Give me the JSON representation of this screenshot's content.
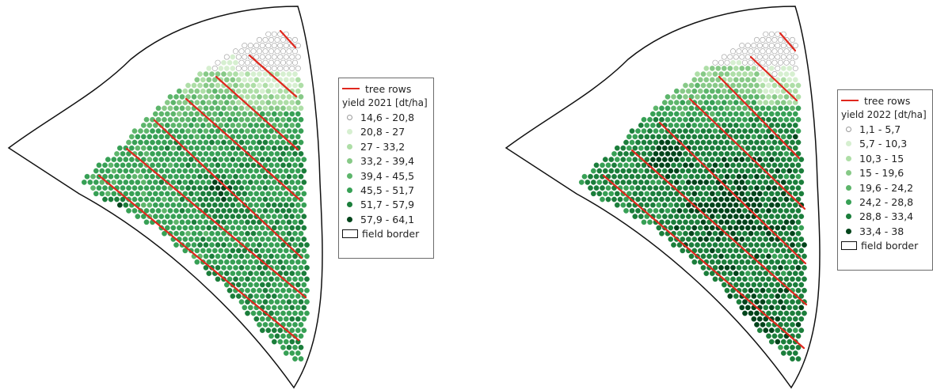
{
  "maps": [
    {
      "id": "2021",
      "legend": {
        "tree_rows_label": "tree rows",
        "title": "yield 2021 [dt/ha]",
        "classes": [
          {
            "label": "14,6 - 20,8",
            "color": "#ffffff"
          },
          {
            "label": "20,8 - 27",
            "color": "#d6efd0"
          },
          {
            "label": "27 - 33,2",
            "color": "#aedea7"
          },
          {
            "label": "33,2 - 39,4",
            "color": "#87c987"
          },
          {
            "label": "39,4 - 45,5",
            "color": "#5db56b"
          },
          {
            "label": "45,5 - 51,7",
            "color": "#37a055"
          },
          {
            "label": "51,7 - 57,9",
            "color": "#1b7e3b"
          },
          {
            "label": "57,9 - 64,1",
            "color": "#00441b"
          }
        ],
        "field_border_label": "field border"
      }
    },
    {
      "id": "2022",
      "legend": {
        "tree_rows_label": "tree rows",
        "title": "yield 2022 [dt/ha]",
        "classes": [
          {
            "label": "1,1 - 5,7",
            "color": "#ffffff"
          },
          {
            "label": "5,7 - 10,3",
            "color": "#d6efd0"
          },
          {
            "label": "10,3 - 15",
            "color": "#aedea7"
          },
          {
            "label": "15 - 19,6",
            "color": "#87c987"
          },
          {
            "label": "19,6 - 24,2",
            "color": "#5db56b"
          },
          {
            "label": "24,2 - 28,8",
            "color": "#37a055"
          },
          {
            "label": "28,8 - 33,4",
            "color": "#1b7e3b"
          },
          {
            "label": "33,4 - 38",
            "color": "#00441b"
          }
        ],
        "field_border_label": "field border"
      }
    }
  ],
  "colors": {
    "tree_row": "#e0281e",
    "field_border": "#111111",
    "dot_outline": "#9a9a9a"
  }
}
